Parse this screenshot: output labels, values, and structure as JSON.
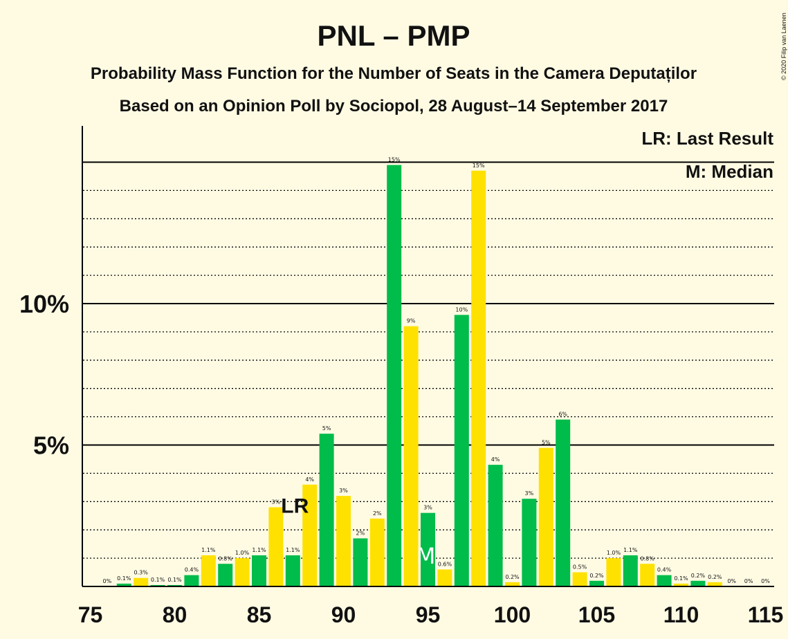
{
  "chart_data": {
    "type": "bar",
    "title": "PNL – PMP",
    "subtitle1": "Probability Mass Function for the Number of Seats in the Camera Deputaților",
    "subtitle2": "Based on an Opinion Poll by Sociopol, 28 August–14 September 2017",
    "copyright": "© 2020 Filip van Laenen",
    "legend": {
      "placement": "top-right",
      "lr": "LR: Last Result",
      "median": "M: Median"
    },
    "xlim": [
      75,
      115
    ],
    "ylim": [
      0,
      16
    ],
    "x_ticks": [
      "75",
      "80",
      "85",
      "90",
      "95",
      "100",
      "105",
      "110",
      "115"
    ],
    "x_tick_values": [
      75,
      80,
      85,
      90,
      95,
      100,
      105,
      110,
      115
    ],
    "y_ticks": [
      "5%",
      "10%"
    ],
    "y_tick_values": [
      5,
      10
    ],
    "last_result": {
      "seat": 87,
      "label": "LR"
    },
    "median": {
      "seat": 95,
      "label": "M"
    },
    "colors": {
      "green": "#00BC4A",
      "yellow": "#FFE100",
      "background": "#FFFBE3"
    },
    "bars": [
      {
        "seat": 76,
        "value": 0,
        "label": "0%",
        "color": "green"
      },
      {
        "seat": 77,
        "value": 0.1,
        "label": "0.1%",
        "color": "green"
      },
      {
        "seat": 78,
        "value": 0.3,
        "label": "0.3%",
        "color": "yellow"
      },
      {
        "seat": 79,
        "value": 0.05,
        "label": "0.1%",
        "color": "green"
      },
      {
        "seat": 80,
        "value": 0.05,
        "label": "0.1%",
        "color": "green"
      },
      {
        "seat": 81,
        "value": 0.4,
        "label": "0.4%",
        "color": "green"
      },
      {
        "seat": 82,
        "value": 1.1,
        "label": "1.1%",
        "color": "yellow"
      },
      {
        "seat": 83,
        "value": 0.8,
        "label": "0.8%",
        "color": "green"
      },
      {
        "seat": 84,
        "value": 1.0,
        "label": "1.0%",
        "color": "yellow"
      },
      {
        "seat": 85,
        "value": 1.1,
        "label": "1.1%",
        "color": "green"
      },
      {
        "seat": 86,
        "value": 2.8,
        "label": "3%",
        "color": "yellow"
      },
      {
        "seat": 87,
        "value": 1.1,
        "label": "1.1%",
        "color": "green"
      },
      {
        "seat": 88,
        "value": 3.6,
        "label": "4%",
        "color": "yellow"
      },
      {
        "seat": 89,
        "value": 5.4,
        "label": "5%",
        "color": "green"
      },
      {
        "seat": 90,
        "value": 3.2,
        "label": "3%",
        "color": "yellow"
      },
      {
        "seat": 91,
        "value": 1.7,
        "label": "2%",
        "color": "green"
      },
      {
        "seat": 92,
        "value": 2.4,
        "label": "2%",
        "color": "yellow"
      },
      {
        "seat": 93,
        "value": 14.9,
        "label": "15%",
        "color": "green"
      },
      {
        "seat": 94,
        "value": 9.2,
        "label": "9%",
        "color": "yellow"
      },
      {
        "seat": 95,
        "value": 2.6,
        "label": "3%",
        "color": "green"
      },
      {
        "seat": 96,
        "value": 0.6,
        "label": "0.6%",
        "color": "yellow"
      },
      {
        "seat": 97,
        "value": 9.6,
        "label": "10%",
        "color": "green"
      },
      {
        "seat": 98,
        "value": 14.7,
        "label": "15%",
        "color": "yellow"
      },
      {
        "seat": 99,
        "value": 4.3,
        "label": "4%",
        "color": "green"
      },
      {
        "seat": 100,
        "value": 0.15,
        "label": "0.2%",
        "color": "yellow"
      },
      {
        "seat": 101,
        "value": 3.1,
        "label": "3%",
        "color": "green"
      },
      {
        "seat": 102,
        "value": 4.9,
        "label": "5%",
        "color": "yellow"
      },
      {
        "seat": 103,
        "value": 5.9,
        "label": "6%",
        "color": "green"
      },
      {
        "seat": 104,
        "value": 0.5,
        "label": "0.5%",
        "color": "yellow"
      },
      {
        "seat": 105,
        "value": 0.2,
        "label": "0.2%",
        "color": "green"
      },
      {
        "seat": 106,
        "value": 1.0,
        "label": "1.0%",
        "color": "yellow"
      },
      {
        "seat": 107,
        "value": 1.1,
        "label": "1.1%",
        "color": "green"
      },
      {
        "seat": 108,
        "value": 0.8,
        "label": "0.8%",
        "color": "yellow"
      },
      {
        "seat": 109,
        "value": 0.4,
        "label": "0.4%",
        "color": "green"
      },
      {
        "seat": 110,
        "value": 0.1,
        "label": "0.1%",
        "color": "yellow"
      },
      {
        "seat": 111,
        "value": 0.2,
        "label": "0.2%",
        "color": "green"
      },
      {
        "seat": 112,
        "value": 0.15,
        "label": "0.2%",
        "color": "yellow"
      },
      {
        "seat": 113,
        "value": 0,
        "label": "0%",
        "color": "green"
      },
      {
        "seat": 114,
        "value": 0,
        "label": "0%",
        "color": "green"
      },
      {
        "seat": 115,
        "value": 0,
        "label": "0%",
        "color": "green"
      }
    ]
  }
}
